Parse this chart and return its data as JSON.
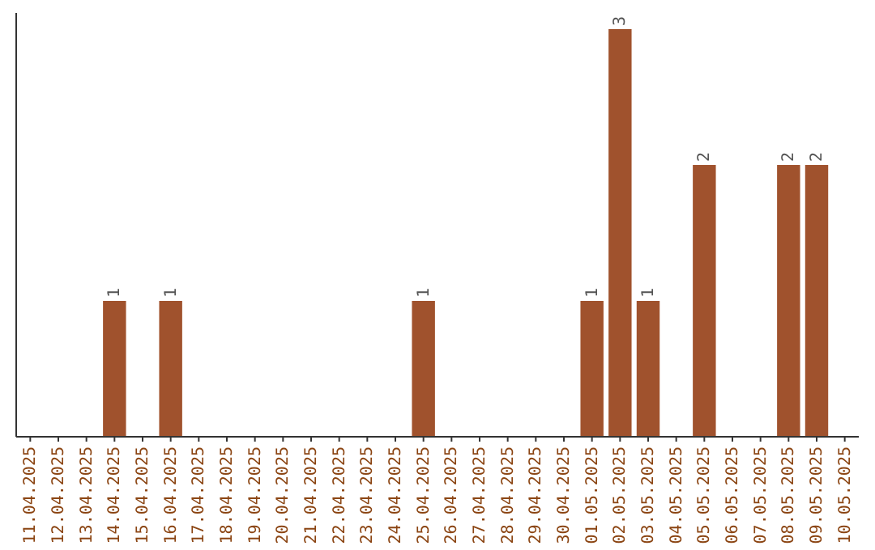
{
  "chart_data": {
    "type": "bar",
    "categories": [
      "11.04.2025",
      "12.04.2025",
      "13.04.2025",
      "14.04.2025",
      "15.04.2025",
      "16.04.2025",
      "17.04.2025",
      "18.04.2025",
      "19.04.2025",
      "20.04.2025",
      "21.04.2025",
      "22.04.2025",
      "23.04.2025",
      "24.04.2025",
      "25.04.2025",
      "26.04.2025",
      "27.04.2025",
      "28.04.2025",
      "29.04.2025",
      "30.04.2025",
      "01.05.2025",
      "02.05.2025",
      "03.05.2025",
      "04.05.2025",
      "05.05.2025",
      "06.05.2025",
      "07.05.2025",
      "08.05.2025",
      "09.05.2025",
      "10.05.2025"
    ],
    "values": [
      0,
      0,
      0,
      1,
      0,
      1,
      0,
      0,
      0,
      0,
      0,
      0,
      0,
      0,
      1,
      0,
      0,
      0,
      0,
      0,
      1,
      3,
      1,
      0,
      2,
      0,
      0,
      2,
      2,
      0
    ],
    "value_labels": [
      null,
      null,
      null,
      "1",
      null,
      "1",
      null,
      null,
      null,
      null,
      null,
      null,
      null,
      null,
      "1",
      null,
      null,
      null,
      null,
      null,
      "1",
      "3",
      "1",
      null,
      "2",
      null,
      null,
      "2",
      "2",
      null
    ],
    "color": "#a0522d"
  }
}
